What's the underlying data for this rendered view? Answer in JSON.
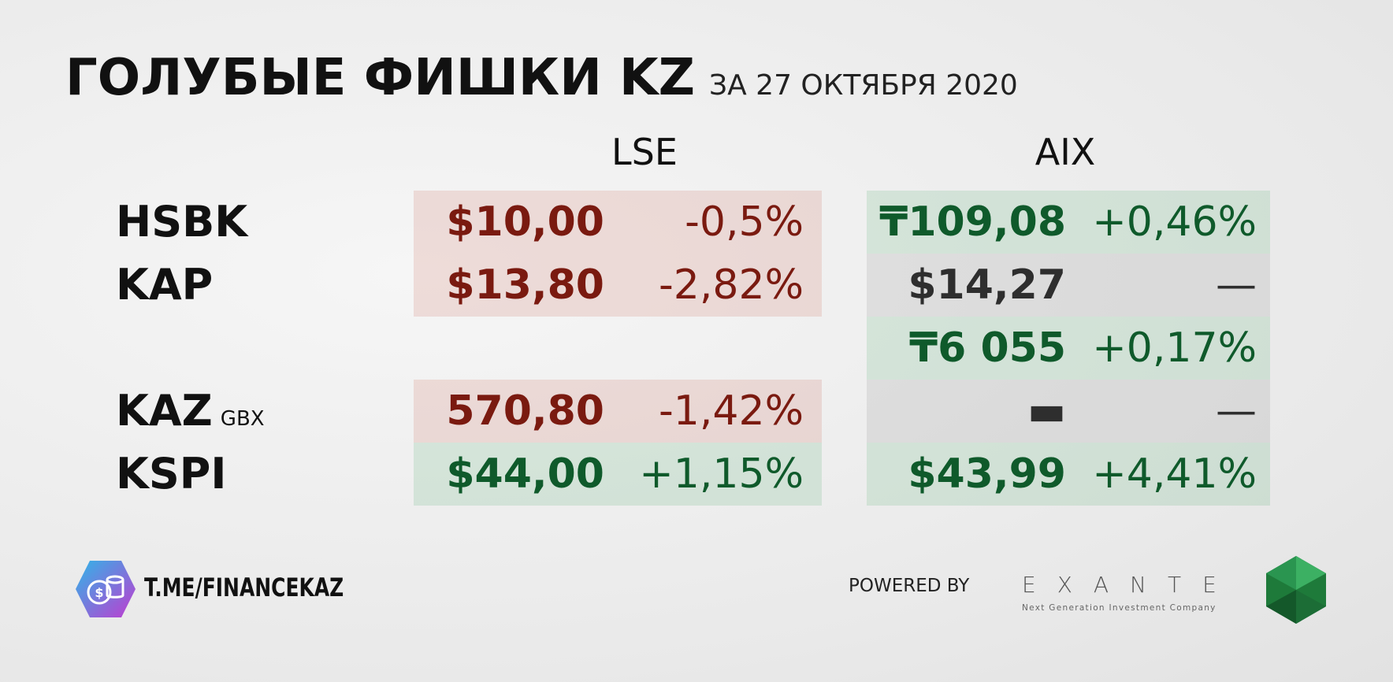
{
  "header": {
    "title": "ГОЛУБЫЕ ФИШКИ KZ",
    "subtitle": "ЗА 27 ОКТЯБРЯ 2020"
  },
  "columns": [
    "LSE",
    "AIX"
  ],
  "rows": [
    {
      "ticker": "HSBK",
      "lse": {
        "price": "$10,00",
        "change": "-0,5%",
        "color": "#7a1a10",
        "background": "rgba(200,90,70,0.16)"
      },
      "aix": {
        "price": "₸109,08",
        "change": "+0,46%",
        "color": "#0f5a2b",
        "background": "rgba(70,170,100,0.16)"
      }
    },
    {
      "ticker": "KAP",
      "lse": {
        "price": "$13,80",
        "change": "-2,82%",
        "color": "#7a1a10",
        "background": "rgba(200,90,70,0.16)"
      },
      "aix": {
        "price": "$14,27",
        "change": "—",
        "color": "#2e2e2e",
        "background": "rgba(120,120,120,0.15)"
      }
    },
    {
      "aix": {
        "price": "₸6 055",
        "change": "+0,17%",
        "color": "#0f5a2b",
        "background": "rgba(70,170,100,0.16)"
      }
    },
    {
      "ticker": "KAZ",
      "suffix": "GBX",
      "lse": {
        "price": "570,80",
        "change": "-1,42%",
        "color": "#7a1a10",
        "background": "rgba(200,90,70,0.16)"
      },
      "aix": {
        "price": "▬",
        "change": "—",
        "color": "#2e2e2e",
        "background": "rgba(120,120,120,0.15)"
      }
    },
    {
      "ticker": "KSPI",
      "lse": {
        "price": "$44,00",
        "change": "+1,15%",
        "color": "#0f5a2b",
        "background": "rgba(70,170,100,0.16)"
      },
      "aix": {
        "price": "$43,99",
        "change": "+4,41%",
        "color": "#0f5a2b",
        "background": "rgba(70,170,100,0.16)"
      }
    }
  ],
  "footer": {
    "channel": "T.ME/FINANCEKAZ",
    "powered": "POWERED BY",
    "brand": "EXANTE",
    "tagline": "Next Generation Investment Company"
  }
}
